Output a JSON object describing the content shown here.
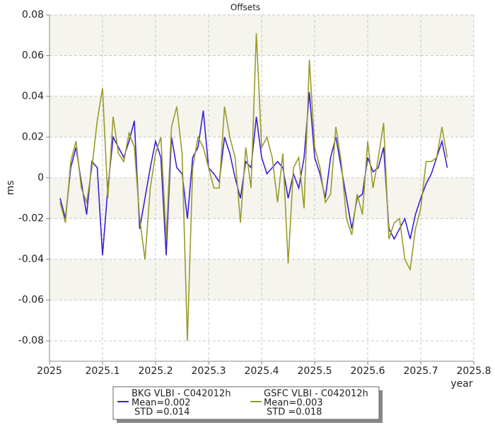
{
  "chart_data": {
    "type": "line",
    "title": "Offsets",
    "xlabel": "year",
    "ylabel": "ms",
    "x": [
      2025.02,
      2025.03,
      2025.04,
      2025.05,
      2025.06,
      2025.07,
      2025.08,
      2025.09,
      2025.1,
      2025.11,
      2025.12,
      2025.13,
      2025.14,
      2025.15,
      2025.16,
      2025.17,
      2025.18,
      2025.19,
      2025.2,
      2025.21,
      2025.22,
      2025.23,
      2025.24,
      2025.25,
      2025.26,
      2025.27,
      2025.28,
      2025.29,
      2025.3,
      2025.31,
      2025.32,
      2025.33,
      2025.34,
      2025.35,
      2025.36,
      2025.37,
      2025.38,
      2025.39,
      2025.4,
      2025.41,
      2025.42,
      2025.43,
      2025.44,
      2025.45,
      2025.46,
      2025.47,
      2025.48,
      2025.49,
      2025.5,
      2025.51,
      2025.52,
      2025.53,
      2025.54,
      2025.55,
      2025.56,
      2025.57,
      2025.58,
      2025.59,
      2025.6,
      2025.61,
      2025.62,
      2025.63,
      2025.64,
      2025.65,
      2025.66,
      2025.67,
      2025.68,
      2025.69,
      2025.7,
      2025.71,
      2025.72,
      2025.73,
      2025.74,
      2025.75
    ],
    "series": [
      {
        "name": "BKG VLBI - C042012h",
        "mean_label": "Mean=0.002",
        "std_label": "STD =0.014",
        "color": "#3a1fd6",
        "values": [
          -0.01,
          -0.02,
          0.005,
          0.015,
          -0.002,
          -0.018,
          0.008,
          0.005,
          -0.038,
          -0.005,
          0.02,
          0.015,
          0.01,
          0.018,
          0.028,
          -0.025,
          -0.01,
          0.005,
          0.018,
          0.01,
          -0.038,
          0.02,
          0.005,
          0.002,
          -0.02,
          0.01,
          0.015,
          0.033,
          0.005,
          0.002,
          -0.002,
          0.02,
          0.012,
          0.0,
          -0.01,
          0.008,
          0.005,
          0.03,
          0.01,
          0.002,
          0.005,
          0.008,
          0.005,
          -0.01,
          0.002,
          -0.005,
          0.01,
          0.042,
          0.01,
          0.002,
          -0.01,
          0.01,
          0.02,
          0.005,
          -0.01,
          -0.025,
          -0.01,
          -0.008,
          0.01,
          0.003,
          0.005,
          0.015,
          -0.025,
          -0.03,
          -0.025,
          -0.02,
          -0.03,
          -0.018,
          -0.01,
          -0.003,
          0.002,
          0.01,
          0.018,
          0.005
        ]
      },
      {
        "name": "GSFC VLBI - C042012h",
        "mean_label": "Mean=0.003",
        "std_label": "STD =0.018",
        "color": "#9a9a2a",
        "values": [
          -0.012,
          -0.022,
          0.008,
          0.018,
          -0.005,
          -0.012,
          0.005,
          0.028,
          0.044,
          -0.01,
          0.03,
          0.012,
          0.008,
          0.022,
          0.015,
          -0.02,
          -0.04,
          -0.005,
          0.012,
          0.02,
          -0.03,
          0.025,
          0.035,
          0.012,
          -0.08,
          0.005,
          0.02,
          0.015,
          0.005,
          -0.005,
          -0.005,
          0.035,
          0.02,
          0.01,
          -0.022,
          0.015,
          -0.005,
          0.071,
          0.015,
          0.02,
          0.01,
          -0.012,
          0.012,
          -0.042,
          0.005,
          0.01,
          -0.015,
          0.058,
          0.015,
          0.005,
          -0.012,
          -0.008,
          0.025,
          0.008,
          -0.02,
          -0.028,
          -0.008,
          -0.018,
          0.018,
          -0.005,
          0.01,
          0.027,
          -0.03,
          -0.022,
          -0.02,
          -0.04,
          -0.045,
          -0.025,
          -0.015,
          0.008,
          0.008,
          0.01,
          0.025,
          0.01
        ]
      }
    ],
    "xlim": [
      2025,
      2025.8
    ],
    "xticks": [
      2025,
      2025.1,
      2025.2,
      2025.3,
      2025.4,
      2025.5,
      2025.6,
      2025.7,
      2025.8
    ],
    "ylim": [
      -0.09,
      0.08
    ],
    "yticks": [
      -0.08,
      -0.06,
      -0.04,
      -0.02,
      0,
      0.02,
      0.04,
      0.06,
      0.08
    ],
    "grid": true
  }
}
